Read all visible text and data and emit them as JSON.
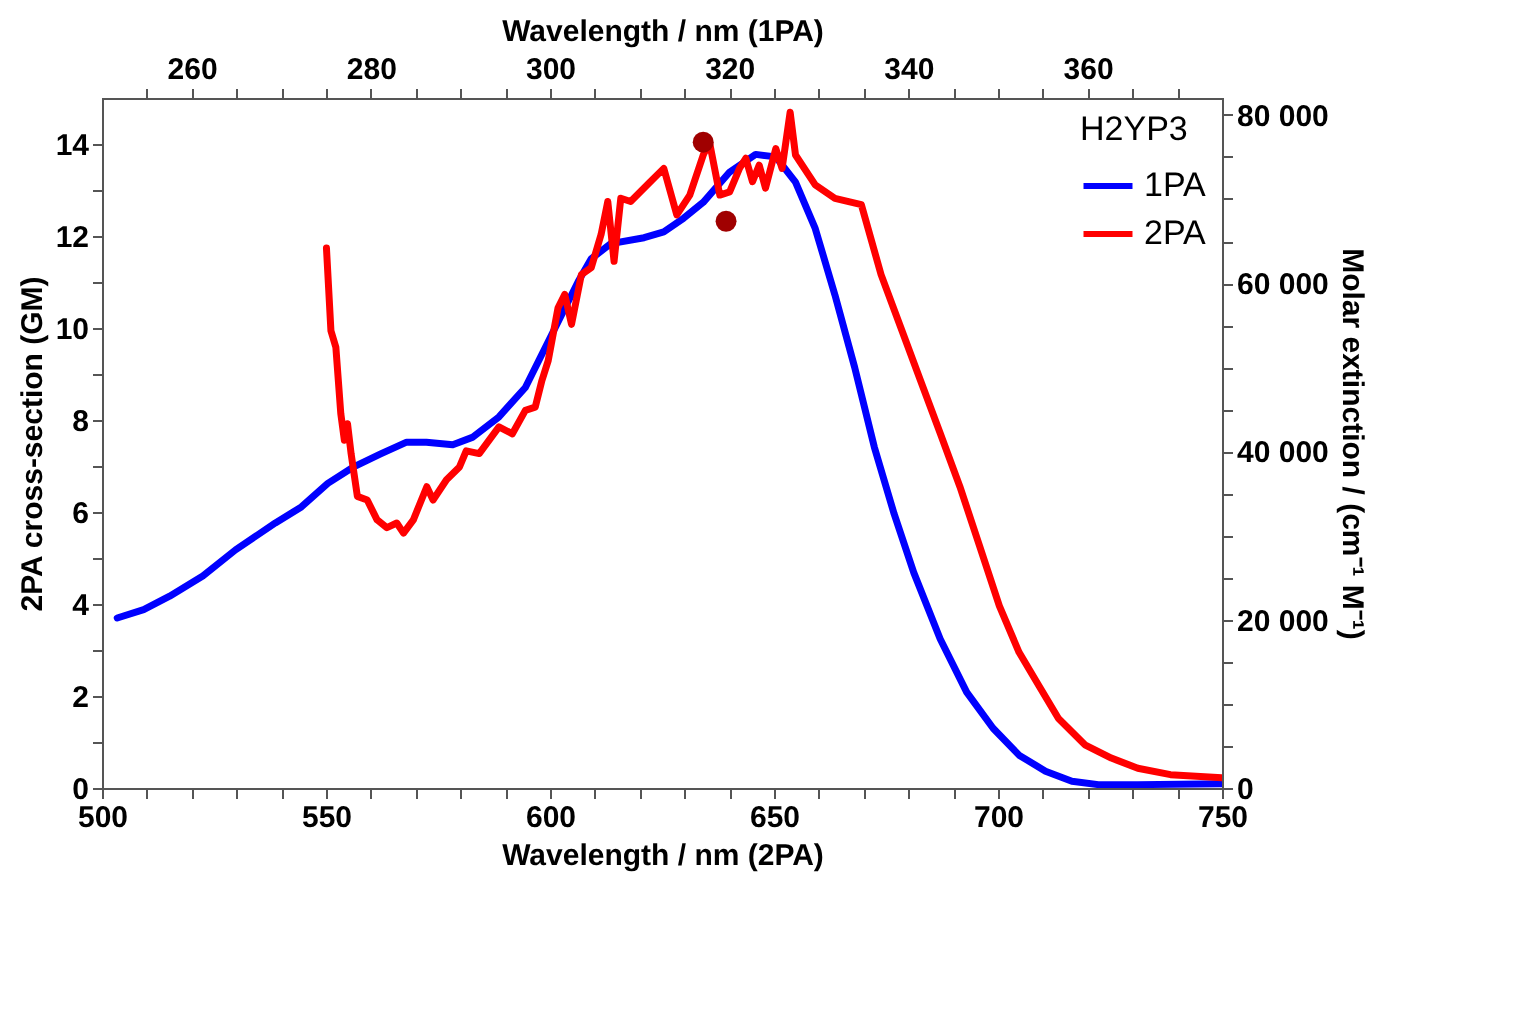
{
  "chart_data": {
    "type": "line",
    "xlabel": "Wavelength  / nm (2PA)",
    "x2label": "Wavelength  / nm (1PA)",
    "ylabel": "2PA cross-section (GM)",
    "y2label": "Molar extinction  / (cm⁻¹ M⁻¹)",
    "legend_title": "H2YP3",
    "legend": "top right",
    "grid": false,
    "xlim": [
      500,
      750
    ],
    "xticks": [
      500,
      {
        "value": 510,
        "label": null
      },
      {
        "value": 520,
        "label": null
      },
      {
        "value": 530,
        "label": null
      },
      {
        "value": 540,
        "label": null
      },
      550,
      {
        "value": 560,
        "label": null
      },
      {
        "value": 570,
        "label": null
      },
      {
        "value": 580,
        "label": null
      },
      {
        "value": 590,
        "label": null
      },
      600,
      {
        "value": 610,
        "label": null
      },
      {
        "value": 620,
        "label": null
      },
      {
        "value": 630,
        "label": null
      },
      {
        "value": 640,
        "label": null
      },
      650,
      {
        "value": 660,
        "label": null
      },
      {
        "value": 670,
        "label": null
      },
      {
        "value": 680,
        "label": null
      },
      {
        "value": 690,
        "label": null
      },
      700,
      {
        "value": 710,
        "label": null
      },
      {
        "value": 720,
        "label": null
      },
      {
        "value": 730,
        "label": null
      },
      {
        "value": 740,
        "label": null
      },
      750
    ],
    "x2lim": [
      250,
      375
    ],
    "x2ticks": [
      {
        "value": 255,
        "label": null
      },
      260,
      {
        "value": 265,
        "label": null
      },
      {
        "value": 270,
        "label": null
      },
      {
        "value": 275,
        "label": null
      },
      280,
      {
        "value": 285,
        "label": null
      },
      {
        "value": 290,
        "label": null
      },
      {
        "value": 295,
        "label": null
      },
      300,
      {
        "value": 305,
        "label": null
      },
      {
        "value": 310,
        "label": null
      },
      {
        "value": 315,
        "label": null
      },
      320,
      {
        "value": 325,
        "label": null
      },
      {
        "value": 330,
        "label": null
      },
      {
        "value": 335,
        "label": null
      },
      340,
      {
        "value": 345,
        "label": null
      },
      {
        "value": 350,
        "label": null
      },
      {
        "value": 355,
        "label": null
      },
      360,
      {
        "value": 365,
        "label": null
      },
      {
        "value": 370,
        "label": null
      }
    ],
    "ylim": [
      0,
      15
    ],
    "yticks": [
      0,
      {
        "value": 1,
        "label": null
      },
      2,
      {
        "value": 3,
        "label": null
      },
      4,
      {
        "value": 5,
        "label": null
      },
      6,
      {
        "value": 7,
        "label": null
      },
      8,
      {
        "value": 9,
        "label": null
      },
      10,
      {
        "value": 11,
        "label": null
      },
      12,
      {
        "value": 13,
        "label": null
      },
      14
    ],
    "y2lim": [
      0,
      82000
    ],
    "y2ticks": [
      0,
      {
        "value": 5000,
        "label": null
      },
      {
        "value": 10000,
        "label": null
      },
      {
        "value": 15000,
        "label": null
      },
      {
        "value": 20000,
        "label": "20 000"
      },
      {
        "value": 25000,
        "label": null
      },
      {
        "value": 30000,
        "label": null
      },
      {
        "value": 35000,
        "label": null
      },
      {
        "value": 40000,
        "label": "40 000"
      },
      {
        "value": 45000,
        "label": null
      },
      {
        "value": 50000,
        "label": null
      },
      {
        "value": 55000,
        "label": null
      },
      {
        "value": 60000,
        "label": "60 000"
      },
      {
        "value": 65000,
        "label": null
      },
      {
        "value": 70000,
        "label": null
      },
      {
        "value": 75000,
        "label": null
      },
      {
        "value": 80000,
        "label": "80 000"
      }
    ],
    "series": [
      {
        "name": "1PA",
        "color": "#0000ff",
        "line_style": "solid",
        "axis": "y2",
        "x": [
          503.4,
          509.3,
          515.1,
          522.5,
          529.8,
          538.7,
          544.5,
          550.4,
          556.3,
          562.2,
          568,
          572.4,
          578.3,
          582.8,
          588.6,
          594.5,
          600.4,
          606.3,
          609.2,
          613.6,
          621,
          625.4,
          629.8,
          634.2,
          640.1,
          645.9,
          650.4,
          654.8,
          659.2,
          663.6,
          668,
          672.4,
          676.8,
          681.2,
          687.1,
          693,
          698.9,
          704.7,
          710.6,
          716.5,
          722.4,
          731.2,
          750
        ],
        "values": [
          20200,
          21200,
          22800,
          25200,
          28300,
          31500,
          33400,
          36200,
          38200,
          39700,
          41100,
          41100,
          40800,
          41700,
          44100,
          47600,
          53900,
          60200,
          62900,
          64700,
          65400,
          66100,
          67700,
          69600,
          73200,
          75300,
          75000,
          72000,
          66500,
          58600,
          50000,
          40500,
          32600,
          25600,
          17700,
          11400,
          7100,
          3900,
          2000,
          800,
          400,
          400,
          500
        ]
      },
      {
        "name": "2PA",
        "color": "#ff0000",
        "line_style": "solid",
        "x": [
          550.1,
          551.1,
          552.2,
          553.3,
          554.1,
          554.8,
          555.6,
          557.0,
          559.2,
          561.4,
          563.6,
          565.8,
          567.3,
          569.5,
          572.5,
          573.9,
          576.9,
          579.8,
          581.3,
          584.2,
          588.6,
          591.6,
          594.5,
          596.7,
          598.2,
          599.6,
          601.8,
          603.3,
          604.8,
          607.0,
          609.2,
          611.4,
          612.9,
          614.3,
          615.8,
          618.0,
          622.4,
          625.4,
          628.3,
          631.2,
          634.2,
          635.6,
          637.9,
          640.1,
          642.3,
          643.7,
          645.2,
          646.7,
          648.1,
          650.4,
          651.8,
          653.6,
          654.8,
          659.2,
          663.6,
          669.5,
          673.9,
          678.3,
          682.7,
          687.1,
          691.5,
          695.9,
          700.3,
          704.7,
          709.1,
          713.5,
          719.4,
          725.3,
          731.2,
          738.5,
          750
        ],
        "values": [
          11.74,
          9.94,
          9.58,
          8.14,
          7.56,
          7.92,
          7.27,
          6.34,
          6.26,
          5.83,
          5.66,
          5.76,
          5.54,
          5.83,
          6.55,
          6.26,
          6.7,
          6.98,
          7.33,
          7.27,
          7.85,
          7.7,
          8.21,
          8.28,
          8.86,
          9.29,
          10.44,
          10.73,
          10.08,
          11.16,
          11.31,
          12.03,
          12.75,
          11.45,
          12.82,
          12.75,
          13.18,
          13.47,
          12.46,
          12.89,
          13.76,
          14.04,
          12.89,
          12.96,
          13.47,
          13.69,
          13.18,
          13.54,
          13.04,
          13.9,
          13.47,
          14.69,
          13.76,
          13.11,
          12.82,
          12.68,
          11.16,
          10.01,
          8.86,
          7.71,
          6.55,
          5.26,
          3.96,
          2.95,
          2.23,
          1.51,
          0.94,
          0.65,
          0.43,
          0.29,
          0.22
        ]
      },
      {
        "color": "#a00000",
        "type": "scatter",
        "marker": "circle",
        "x": [
          634.2,
          639.3
        ],
        "values": [
          14.04,
          12.32
        ]
      }
    ]
  }
}
